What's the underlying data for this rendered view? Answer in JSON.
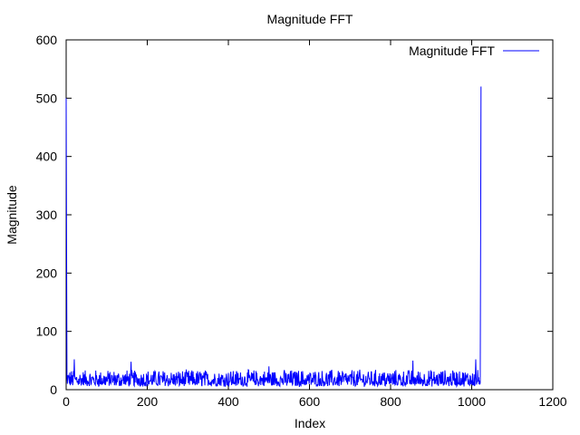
{
  "chart_data": {
    "type": "line",
    "title": "Magnitude FFT",
    "xlabel": "Index",
    "ylabel": "Magnitude",
    "xlim": [
      0,
      1200
    ],
    "ylim": [
      0,
      600
    ],
    "xticks": [
      "0",
      "200",
      "400",
      "600",
      "800",
      "1000",
      "1200"
    ],
    "yticks": [
      "0",
      "100",
      "200",
      "300",
      "400",
      "500",
      "600"
    ],
    "grid": false,
    "legend_position": "top-right",
    "series": [
      {
        "name": "Magnitude FFT",
        "color": "#0000ff",
        "n_points": 1024,
        "baseline_range": [
          5,
          40
        ],
        "peaks": [
          {
            "x": 0,
            "y": 500
          },
          {
            "x": 1,
            "y": 258
          },
          {
            "x": 1022,
            "y": 258
          },
          {
            "x": 1023,
            "y": 520
          }
        ],
        "notable_spikes": [
          {
            "x": 20,
            "y": 52
          },
          {
            "x": 160,
            "y": 48
          },
          {
            "x": 500,
            "y": 40
          },
          {
            "x": 855,
            "y": 50
          },
          {
            "x": 1010,
            "y": 52
          }
        ]
      }
    ]
  }
}
